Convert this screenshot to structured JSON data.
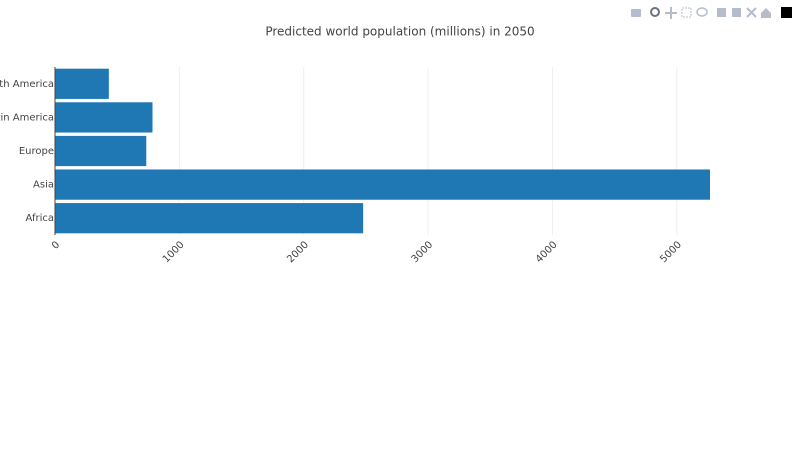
{
  "chart_data": {
    "type": "bar",
    "orientation": "h",
    "title": "Predicted world population (millions) in 2050",
    "categories": [
      "Africa",
      "Asia",
      "Europe",
      "Latin America",
      "North America"
    ],
    "values": [
      2478,
      5267,
      734,
      784,
      433
    ],
    "color": "#1f77b4",
    "xlim": [
      0,
      5267
    ],
    "xticks": [
      0,
      1000,
      2000,
      3000,
      4000,
      5000
    ],
    "grid": true
  }
}
